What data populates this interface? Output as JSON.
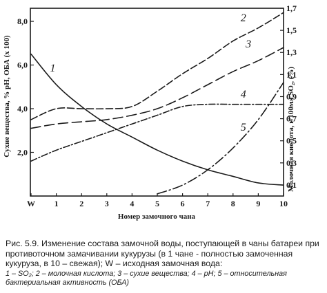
{
  "chart_data": {
    "type": "line",
    "title": "",
    "xlabel": "Номер замочного чана",
    "ylabel_left": "Сухие вещества, % pH, ОБА (x 100)",
    "ylabel_right": "Молочная кислота, г/100мл SO₂, (%)",
    "x_ticks": [
      "W",
      "1",
      "2",
      "3",
      "4",
      "5",
      "6",
      "7",
      "8",
      "9",
      "10"
    ],
    "y_left_ticks": [
      "2,0",
      "4,0",
      "6,0",
      "8,0"
    ],
    "y_right_ticks": [
      "0,1",
      "0,3",
      "0,5",
      "0,7",
      "0,9",
      "1,1",
      "1,3",
      "1,5",
      "1,7"
    ],
    "ylim_left": [
      0,
      8.6
    ],
    "ylim_right": [
      0,
      1.7
    ],
    "x_positions": [
      0,
      1,
      2,
      3,
      4,
      5,
      6,
      7,
      8,
      9,
      10
    ],
    "series": [
      {
        "name": "1",
        "style": "solid",
        "x": [
          0,
          1,
          2,
          3,
          4,
          5,
          6,
          7,
          8,
          9,
          10
        ],
        "y": [
          6.5,
          5.1,
          4.1,
          3.3,
          2.7,
          2.1,
          1.6,
          1.2,
          0.9,
          0.6,
          0.5
        ]
      },
      {
        "name": "2",
        "style": "dashed",
        "x": [
          0,
          1,
          2,
          3,
          4,
          5,
          6,
          7,
          8,
          9,
          10
        ],
        "y": [
          3.5,
          4.0,
          4.0,
          4.0,
          4.1,
          4.8,
          5.6,
          6.3,
          7.1,
          7.7,
          8.4
        ]
      },
      {
        "name": "3",
        "style": "long-dash",
        "x": [
          0,
          1,
          2,
          3,
          4,
          5,
          6,
          7,
          8,
          9,
          10
        ],
        "y": [
          3.1,
          3.3,
          3.4,
          3.5,
          3.7,
          4.0,
          4.5,
          5.1,
          5.7,
          6.2,
          6.8
        ]
      },
      {
        "name": "4",
        "style": "dash-dot",
        "x": [
          0,
          1,
          2,
          3,
          4,
          5,
          6,
          7,
          8,
          9,
          10
        ],
        "y": [
          1.6,
          2.1,
          2.5,
          2.9,
          3.3,
          3.7,
          4.1,
          4.2,
          4.2,
          4.2,
          4.2
        ]
      },
      {
        "name": "5",
        "style": "long-dash-dot",
        "x": [
          5,
          6,
          7,
          8,
          9,
          10
        ],
        "y": [
          0.1,
          0.5,
          1.2,
          2.2,
          3.5,
          5.2
        ]
      }
    ]
  },
  "caption": {
    "main": "Рис. 5.9.  Изменение состава замочной воды, поступающей в чаны батареи при противоточном замачивании кукурузы (в 1 чане - полностью замоченная кукуруза, в 10 – свежая);  W – исходная замочная вода:",
    "legend": "1 – SO₂; 2 – молочная кислота; 3 – сухие вещества;  4 – pH; 5 – относительная бактериальная активность (ОБА)"
  }
}
